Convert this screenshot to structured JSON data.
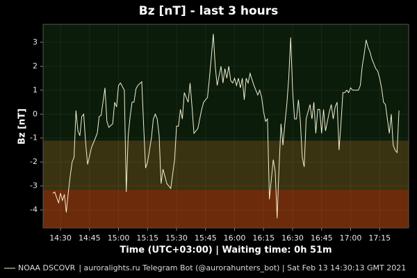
{
  "chart_data": {
    "type": "line",
    "title": "Bz [nT] - last 3 hours",
    "xlabel": "Time (UTC+03:00) | Waiting time: 0h 51m",
    "ylabel": "Bz [nT]",
    "footer": "| auroralights.ru Telegram Bot (@aurorahunters_bot) | Sat Feb 13 14:30:13 GMT 2021",
    "x": [
      "14:26",
      "14:27",
      "14:29",
      "14:30",
      "14:31",
      "14:32",
      "14:33",
      "14:34",
      "14:35",
      "14:36",
      "14:37",
      "14:38",
      "14:39",
      "14:40",
      "14:41",
      "14:42",
      "14:43",
      "14:44",
      "14:46",
      "14:47",
      "14:49",
      "14:50",
      "14:51",
      "14:53",
      "14:54",
      "14:55",
      "14:57",
      "14:58",
      "14:59",
      "15:00",
      "15:01",
      "15:03",
      "15:04",
      "15:05",
      "15:06",
      "15:07",
      "15:08",
      "15:09",
      "15:10",
      "15:12",
      "15:13",
      "15:14",
      "15:15",
      "15:17",
      "15:18",
      "15:19",
      "15:20",
      "15:21",
      "15:22",
      "15:23",
      "15:24",
      "15:25",
      "15:26",
      "15:27",
      "15:29",
      "15:30",
      "15:31",
      "15:32",
      "15:33",
      "15:34",
      "15:36",
      "15:37",
      "15:38",
      "15:39",
      "15:40",
      "15:41",
      "15:42",
      "15:43",
      "15:44",
      "15:46",
      "15:47",
      "15:48",
      "15:49",
      "15:50",
      "15:51",
      "15:52",
      "15:53",
      "15:54",
      "15:55",
      "15:56",
      "15:57",
      "15:58",
      "15:59",
      "16:00",
      "16:01",
      "16:02",
      "16:03",
      "16:04",
      "16:05",
      "16:06",
      "16:07",
      "16:08",
      "16:10",
      "16:11",
      "16:12",
      "16:13",
      "16:14",
      "16:15",
      "16:16",
      "16:17",
      "16:18",
      "16:20",
      "16:21",
      "16:22",
      "16:23",
      "16:24",
      "16:25",
      "16:26",
      "16:27",
      "16:28",
      "16:29",
      "16:30",
      "16:31",
      "16:32",
      "16:33",
      "16:34",
      "16:35",
      "16:36",
      "16:37",
      "16:39",
      "16:40",
      "16:41",
      "16:42",
      "16:43",
      "16:44",
      "16:45",
      "16:46",
      "16:47",
      "16:49",
      "16:50",
      "16:51",
      "16:52",
      "16:53",
      "16:54",
      "16:55",
      "16:56",
      "16:57",
      "16:58",
      "16:59",
      "17:00",
      "17:01",
      "17:03",
      "17:04",
      "17:05",
      "17:06",
      "17:07",
      "17:08",
      "17:09",
      "17:10",
      "17:11",
      "17:13",
      "17:14",
      "17:15",
      "17:16",
      "17:17",
      "17:18",
      "17:19",
      "17:20",
      "17:21",
      "17:22",
      "17:23",
      "17:24",
      "17:25"
    ],
    "series": [
      {
        "name": "NOAA DSCOVR",
        "color": "#f2f0d2",
        "values": [
          -3.3,
          -3.25,
          -3.7,
          -3.3,
          -3.6,
          -3.35,
          -4.1,
          -3.3,
          -2.6,
          -2.0,
          -1.8,
          0.15,
          -0.7,
          -0.9,
          -0.1,
          0,
          -1.2,
          -2.1,
          -1.4,
          -1.2,
          -0.8,
          -0.1,
          -0.05,
          1.1,
          -0.3,
          -0.55,
          -0.4,
          0.5,
          0.3,
          1.2,
          1.3,
          1.0,
          -3.25,
          -0.9,
          -0.1,
          0.5,
          0.5,
          1.05,
          1.2,
          1.35,
          -0.5,
          -2.25,
          -2.0,
          -1.0,
          -0.2,
          0,
          -0.2,
          -0.9,
          -2.9,
          -2.3,
          -2.6,
          -2.9,
          -3.0,
          -3.1,
          -1.9,
          -0.5,
          -0.5,
          0.2,
          -0.2,
          0.9,
          0.5,
          1.3,
          0.3,
          -0.8,
          -0.7,
          -0.6,
          -0.2,
          0.2,
          0.5,
          0.7,
          1.5,
          2.4,
          3.35,
          2.0,
          1.2,
          1.6,
          2.0,
          1.3,
          1.9,
          1.5,
          2.0,
          1.4,
          1.3,
          1.5,
          1.2,
          1.5,
          1.1,
          1.5,
          0.6,
          1.5,
          1.3,
          1.7,
          1.2,
          1.0,
          0.8,
          1.0,
          0.7,
          0.1,
          -0.3,
          -0.2,
          -3.55,
          -1.9,
          -2.4,
          -4.35,
          -2.2,
          -0.4,
          -1.3,
          -0.4,
          0.4,
          1.5,
          3.2,
          1.0,
          -0.2,
          -0.2,
          0.6,
          -0.3,
          -1.8,
          -2.2,
          -0.2,
          0.4,
          -0.2,
          0.5,
          -0.8,
          0.2,
          0.2,
          -0.8,
          0.2,
          -0.7,
          0.1,
          0.4,
          -0.2,
          0.3,
          0.5,
          -1.5,
          -0.4,
          0.9,
          0.9,
          1.0,
          0.9,
          1.1,
          1.0,
          1.0,
          1.0,
          1.2,
          2.0,
          2.5,
          3.1,
          2.8,
          2.6,
          2.3,
          1.9,
          1.8,
          1.5,
          1.1,
          0.5,
          0.4,
          -0.2,
          -0.8,
          0,
          -1.3,
          -1.5,
          -1.6,
          0.15
        ]
      }
    ],
    "xlim": [
      "14:21",
      "17:30"
    ],
    "xticks": [
      "14:30",
      "14:45",
      "15:00",
      "15:15",
      "15:30",
      "15:45",
      "16:00",
      "16:15",
      "16:30",
      "16:45",
      "17:00",
      "17:15"
    ],
    "ylim": [
      -4.75,
      3.75
    ],
    "yticks": [
      -4,
      -3,
      -2,
      -1,
      0,
      1,
      2,
      3
    ],
    "bands": [
      {
        "from": -1.1,
        "to": 3.75,
        "color": "#0b1c0a"
      },
      {
        "from": -3.15,
        "to": -1.1,
        "color": "#3a3311"
      },
      {
        "from": -4.75,
        "to": -3.15,
        "color": "#6c2b0a"
      }
    ],
    "grid": true
  }
}
